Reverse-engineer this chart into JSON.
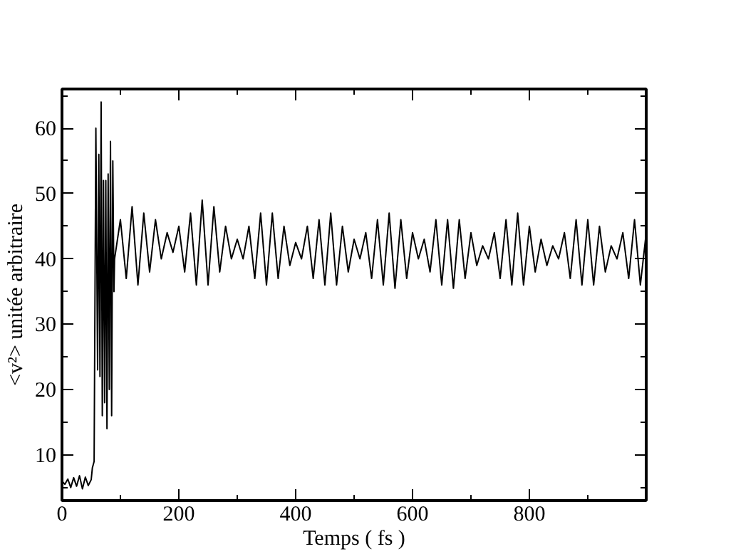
{
  "chart_data": {
    "type": "line",
    "xlabel": "Temps ( fs )",
    "ylabel": "<v²> unitée arbitraire",
    "xlim": [
      0,
      1000
    ],
    "ylim": [
      3,
      66
    ],
    "xticks": [
      0,
      {
        "value": 100,
        "label": null
      },
      200,
      {
        "value": 300,
        "label": null
      },
      400,
      {
        "value": 500,
        "label": null
      },
      600,
      {
        "value": 700,
        "label": null
      },
      800,
      {
        "value": 900,
        "label": null
      }
    ],
    "yticks": [
      {
        "value": 5,
        "label": null
      },
      10,
      {
        "value": 15,
        "label": null
      },
      20,
      {
        "value": 25,
        "label": null
      },
      30,
      {
        "value": 35,
        "label": null
      },
      40,
      {
        "value": 45,
        "label": null
      },
      50,
      {
        "value": 55,
        "label": null
      },
      60,
      {
        "value": 65,
        "label": null
      }
    ],
    "grid": false,
    "marker": "none",
    "line_style": "solid",
    "series": [
      {
        "color": "#000000",
        "x": [
          0,
          5,
          10,
          15,
          20,
          25,
          30,
          35,
          40,
          45,
          50,
          52,
          55,
          58,
          61,
          63,
          65,
          67,
          69,
          71,
          73,
          75,
          77,
          79,
          81,
          83,
          85,
          87,
          89,
          90,
          100,
          110,
          120,
          130,
          140,
          150,
          160,
          170,
          180,
          190,
          200,
          210,
          220,
          230,
          240,
          250,
          260,
          270,
          280,
          290,
          300,
          310,
          320,
          330,
          340,
          350,
          360,
          370,
          380,
          390,
          400,
          410,
          420,
          430,
          440,
          450,
          460,
          470,
          480,
          490,
          500,
          510,
          520,
          530,
          540,
          550,
          560,
          570,
          580,
          590,
          600,
          610,
          620,
          630,
          640,
          650,
          660,
          670,
          680,
          690,
          700,
          710,
          720,
          730,
          740,
          750,
          760,
          770,
          780,
          790,
          800,
          810,
          820,
          830,
          840,
          850,
          860,
          870,
          880,
          890,
          900,
          910,
          920,
          930,
          940,
          950,
          960,
          970,
          980,
          990,
          1000
        ],
        "values": [
          6,
          5.5,
          6.3,
          5,
          6.5,
          5.2,
          6.8,
          4.8,
          6.6,
          5.3,
          6.2,
          8,
          9,
          60,
          23,
          56,
          22,
          64,
          16,
          52,
          18,
          52,
          14,
          53,
          20,
          58,
          16,
          55,
          35,
          40,
          46,
          37,
          48,
          36,
          47,
          38,
          46,
          40,
          44,
          41,
          45,
          38,
          47,
          36,
          49,
          36,
          48,
          38,
          45,
          40,
          43,
          40,
          45,
          37,
          47,
          36,
          47,
          37,
          45,
          39,
          42.5,
          40,
          45,
          37,
          46,
          36,
          47,
          36,
          45,
          38,
          43,
          40,
          44,
          37,
          46,
          36,
          47,
          35.5,
          46,
          37,
          44,
          40,
          43,
          38,
          46,
          36,
          46,
          35.5,
          46,
          37,
          44,
          39,
          42,
          40,
          44,
          37,
          46,
          36,
          47,
          36,
          45,
          38,
          43,
          39,
          42,
          40,
          44,
          37,
          46,
          36,
          46,
          36,
          45,
          38,
          42,
          40,
          44,
          37,
          46,
          36,
          44
        ]
      }
    ]
  }
}
